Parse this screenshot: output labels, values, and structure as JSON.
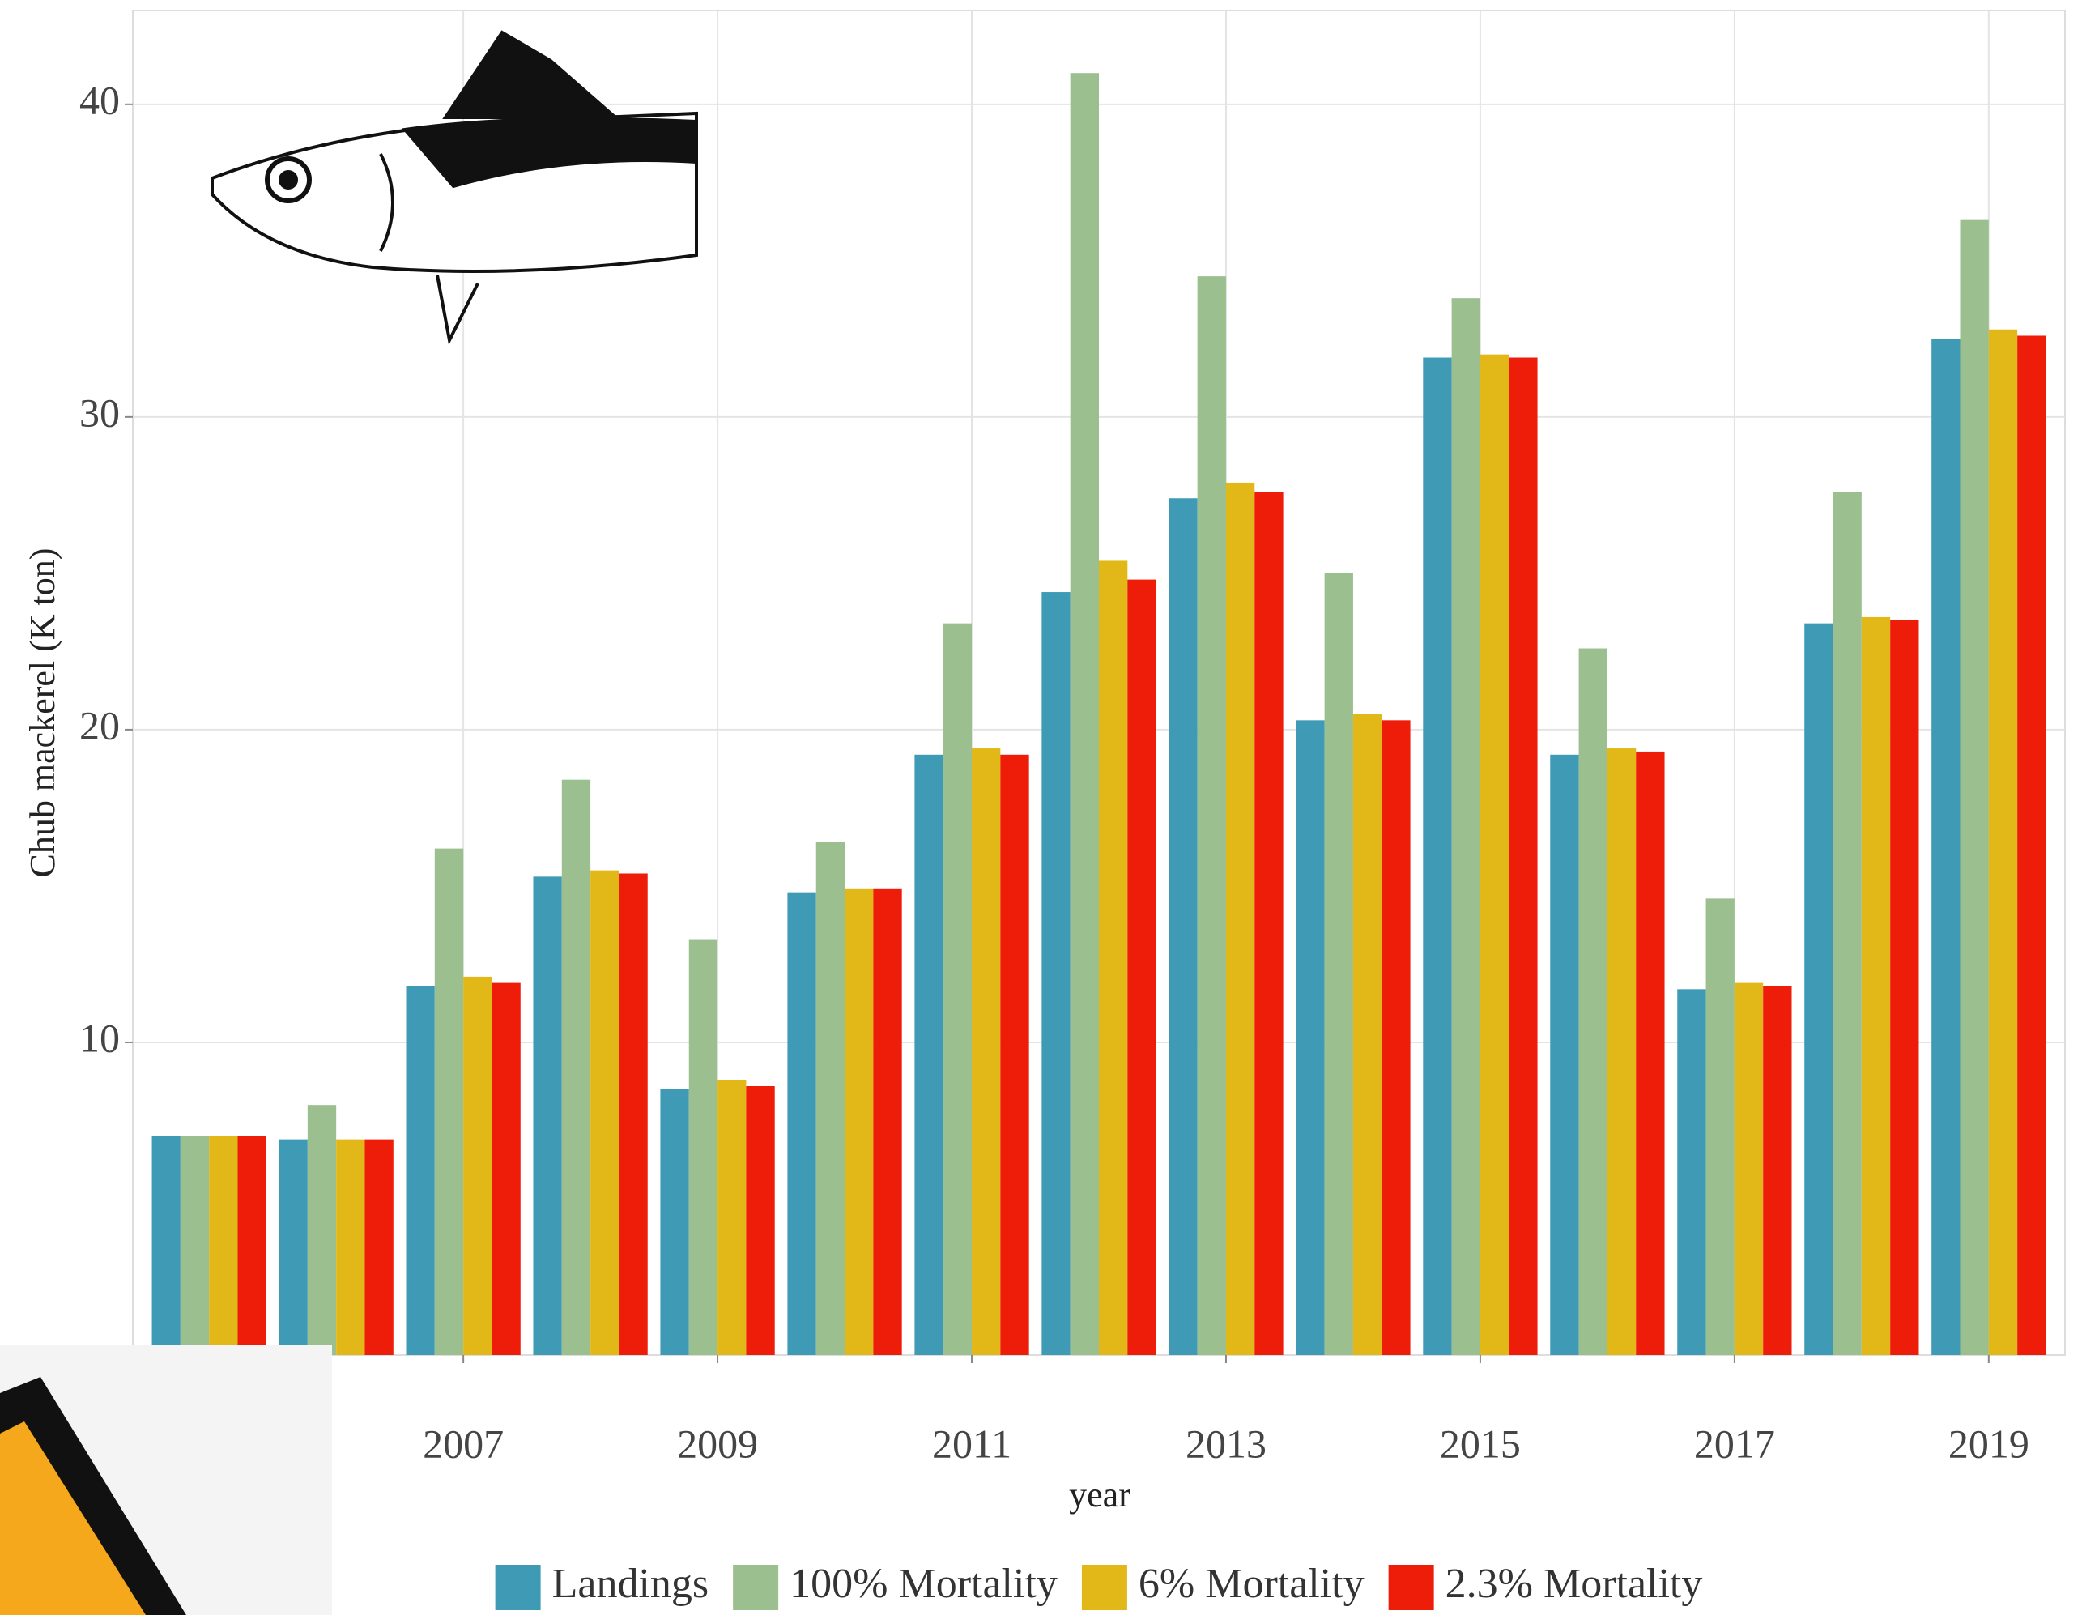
{
  "chart_data": {
    "type": "bar",
    "x": [
      2005,
      2006,
      2007,
      2008,
      2009,
      2010,
      2011,
      2012,
      2013,
      2014,
      2015,
      2016,
      2017,
      2018,
      2019
    ],
    "xlim": [
      2004.4,
      2019.6
    ],
    "xticks": [
      2007,
      2009,
      2011,
      2013,
      2015,
      2017,
      2019
    ],
    "ylim": [
      0,
      43
    ],
    "yticks": [
      10,
      20,
      30,
      40
    ],
    "x_label": "year",
    "y_label": "Chub mackerel (K ton)",
    "grid": true,
    "legend": "bottom",
    "series": [
      {
        "name": "Landings",
        "color": "#3f9bb5",
        "values": [
          7.0,
          6.9,
          11.8,
          15.3,
          8.5,
          14.8,
          19.2,
          24.4,
          27.4,
          20.3,
          31.9,
          19.2,
          11.7,
          23.4,
          32.5
        ]
      },
      {
        "name": "100% Mortality",
        "color": "#9cbf90",
        "values": [
          7.0,
          8.0,
          16.2,
          18.4,
          13.3,
          16.4,
          23.4,
          41.0,
          34.5,
          25.0,
          33.8,
          22.6,
          14.6,
          27.6,
          36.3
        ]
      },
      {
        "name": "6% Mortality",
        "color": "#e2b718",
        "values": [
          7.0,
          6.9,
          12.1,
          15.5,
          8.8,
          14.9,
          19.4,
          25.4,
          27.9,
          20.5,
          32.0,
          19.4,
          11.9,
          23.6,
          32.8
        ]
      },
      {
        "name": "2.3% Mortality",
        "color": "#ee1d0a",
        "values": [
          7.0,
          6.9,
          11.9,
          15.4,
          8.6,
          14.9,
          19.2,
          24.8,
          27.6,
          20.3,
          31.9,
          19.3,
          11.8,
          23.5,
          32.6
        ]
      }
    ]
  }
}
